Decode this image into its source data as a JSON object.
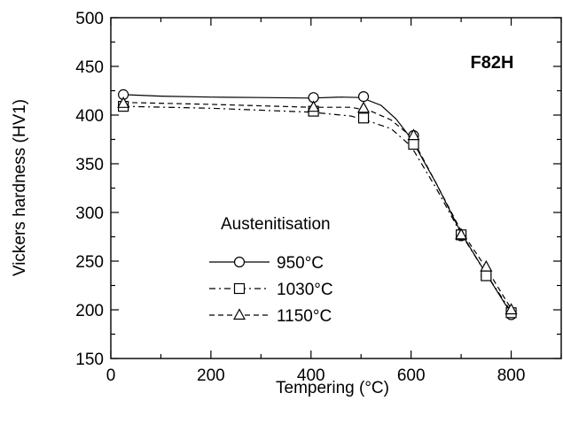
{
  "chart_data": {
    "type": "line",
    "xlabel": "Tempering (°C)",
    "ylabel": "Vickers hardness (HV1)",
    "xlim": [
      0,
      900
    ],
    "ylim": [
      150,
      500
    ],
    "x_ticks": [
      0,
      200,
      400,
      600,
      800
    ],
    "y_ticks": [
      150,
      200,
      250,
      300,
      350,
      400,
      450,
      500
    ],
    "grid": false,
    "annotation": "F82H",
    "legend": {
      "title": "Austenitisation",
      "placement": "center-left"
    },
    "series": [
      {
        "name": "950°C",
        "marker": "circle",
        "line_style": "solid",
        "points": [
          [
            25,
            421
          ],
          [
            405,
            418
          ],
          [
            505,
            419
          ],
          [
            605,
            379
          ],
          [
            700,
            276
          ],
          [
            750,
            235
          ],
          [
            800,
            195
          ]
        ],
        "curve": [
          [
            25,
            421
          ],
          [
            100,
            419.5
          ],
          [
            200,
            418.5
          ],
          [
            300,
            418
          ],
          [
            400,
            417.5
          ],
          [
            460,
            418.5
          ],
          [
            500,
            418
          ],
          [
            540,
            410
          ],
          [
            570,
            396
          ],
          [
            600,
            376
          ],
          [
            650,
            330
          ],
          [
            700,
            279
          ],
          [
            750,
            237
          ],
          [
            800,
            196
          ]
        ]
      },
      {
        "name": "1030°C",
        "marker": "square",
        "line_style": "dashdot",
        "points": [
          [
            25,
            409
          ],
          [
            405,
            404
          ],
          [
            505,
            397
          ],
          [
            605,
            370
          ],
          [
            700,
            277
          ],
          [
            750,
            235
          ],
          [
            800,
            197
          ]
        ],
        "curve": [
          [
            25,
            409
          ],
          [
            200,
            407
          ],
          [
            400,
            403
          ],
          [
            480,
            399
          ],
          [
            520,
            393
          ],
          [
            560,
            386
          ],
          [
            600,
            368
          ],
          [
            650,
            325
          ],
          [
            700,
            278
          ],
          [
            750,
            237
          ],
          [
            800,
            198
          ]
        ]
      },
      {
        "name": "1150°C",
        "marker": "triangle",
        "line_style": "dashed",
        "points": [
          [
            25,
            412
          ],
          [
            405,
            408
          ],
          [
            505,
            407
          ],
          [
            605,
            379
          ],
          [
            700,
            277
          ],
          [
            750,
            244
          ],
          [
            800,
            200
          ]
        ],
        "curve": [
          [
            25,
            413
          ],
          [
            200,
            411
          ],
          [
            400,
            408
          ],
          [
            480,
            408
          ],
          [
            520,
            404
          ],
          [
            560,
            395
          ],
          [
            600,
            378
          ],
          [
            650,
            330
          ],
          [
            700,
            281
          ],
          [
            750,
            243
          ],
          [
            800,
            201
          ]
        ]
      }
    ]
  }
}
